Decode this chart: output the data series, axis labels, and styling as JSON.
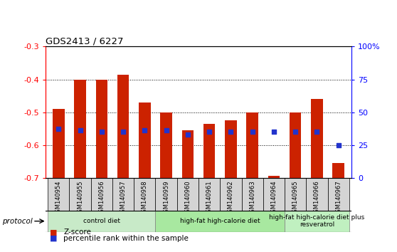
{
  "title": "GDS2413 / 6227",
  "samples": [
    "GSM140954",
    "GSM140955",
    "GSM140956",
    "GSM140957",
    "GSM140958",
    "GSM140959",
    "GSM140960",
    "GSM140961",
    "GSM140962",
    "GSM140963",
    "GSM140964",
    "GSM140965",
    "GSM140966",
    "GSM140967"
  ],
  "zscore": [
    -0.49,
    -0.4,
    -0.4,
    -0.385,
    -0.47,
    -0.5,
    -0.555,
    -0.535,
    -0.525,
    -0.5,
    -0.695,
    -0.5,
    -0.46,
    -0.655
  ],
  "percentile": [
    37,
    36,
    35,
    35,
    36,
    36,
    33,
    35,
    35,
    35,
    35,
    35,
    35,
    25
  ],
  "ylim_left": [
    -0.7,
    -0.3
  ],
  "ylim_right": [
    0,
    100
  ],
  "yticks_left": [
    -0.7,
    -0.6,
    -0.5,
    -0.4,
    -0.3
  ],
  "yticks_right": [
    0,
    25,
    50,
    75,
    100
  ],
  "bar_color": "#cc2200",
  "dot_color": "#2233cc",
  "bar_bottom": -0.7,
  "protocol_label": "protocol",
  "groups": [
    {
      "label": "control diet",
      "start": 0,
      "end": 5,
      "color": "#c8eac8"
    },
    {
      "label": "high-fat high-calorie diet",
      "start": 5,
      "end": 11,
      "color": "#a8e8a0"
    },
    {
      "label": "high-fat high-calorie diet plus\nresveratrol",
      "start": 11,
      "end": 14,
      "color": "#c0f0c0"
    }
  ],
  "xtick_bg": "#d8d8d8",
  "spine_color": "#000000"
}
